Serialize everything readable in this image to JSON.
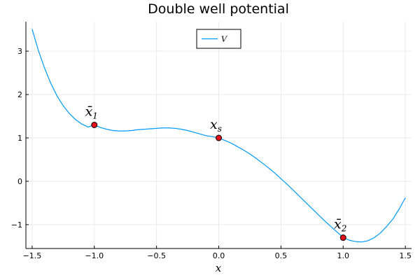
{
  "chart_data": {
    "type": "line",
    "title": "Double well potential",
    "xlabel": "x",
    "ylabel": "",
    "xlim": [
      -1.55,
      1.55
    ],
    "ylim": [
      -1.55,
      3.68
    ],
    "grid": true,
    "legend_position": "top-center",
    "x_ticks": [
      -1.5,
      -1.0,
      -0.5,
      0.0,
      0.5,
      1.0,
      1.5
    ],
    "x_tick_labels": [
      "−1.5",
      "−1.0",
      "−0.5",
      "0.0",
      "0.5",
      "1.0",
      "1.5"
    ],
    "y_ticks": [
      -1,
      0,
      1,
      2,
      3
    ],
    "y_tick_labels": [
      "−1",
      "0",
      "1",
      "2",
      "3"
    ],
    "colors": {
      "series": "#009AFA",
      "points": "#E3111B"
    },
    "series": [
      {
        "name": "V",
        "x": [
          -1.5,
          -1.45,
          -1.4,
          -1.35,
          -1.3,
          -1.25,
          -1.2,
          -1.15,
          -1.1,
          -1.05,
          -1.0,
          -0.95,
          -0.9,
          -0.85,
          -0.8,
          -0.75,
          -0.7,
          -0.65,
          -0.6,
          -0.55,
          -0.5,
          -0.45,
          -0.4,
          -0.35,
          -0.3,
          -0.25,
          -0.2,
          -0.15,
          -0.1,
          -0.05,
          0.0,
          0.05,
          0.1,
          0.15,
          0.2,
          0.25,
          0.3,
          0.35,
          0.4,
          0.45,
          0.5,
          0.55,
          0.6,
          0.65,
          0.7,
          0.75,
          0.8,
          0.85,
          0.9,
          0.95,
          1.0,
          1.05,
          1.1,
          1.15,
          1.2,
          1.25,
          1.3,
          1.35,
          1.4,
          1.45,
          1.5
        ],
        "y": [
          3.51,
          3.02,
          2.61,
          2.26,
          1.97,
          1.74,
          1.56,
          1.42,
          1.32,
          1.25,
          1.3,
          1.24,
          1.2,
          1.17,
          1.16,
          1.16,
          1.17,
          1.19,
          1.2,
          1.21,
          1.22,
          1.23,
          1.23,
          1.22,
          1.2,
          1.17,
          1.13,
          1.09,
          1.05,
          1.03,
          1.0,
          0.94,
          0.88,
          0.8,
          0.72,
          0.63,
          0.53,
          0.42,
          0.31,
          0.19,
          0.06,
          -0.07,
          -0.21,
          -0.35,
          -0.49,
          -0.63,
          -0.77,
          -0.91,
          -1.04,
          -1.17,
          -1.29,
          -1.36,
          -1.39,
          -1.4,
          -1.37,
          -1.3,
          -1.19,
          -1.04,
          -0.87,
          -0.64,
          -0.38
        ]
      }
    ],
    "points": [
      {
        "x": -1.0,
        "y": 1.3,
        "label_main": "x̄",
        "label_sub": "1"
      },
      {
        "x": 0.0,
        "y": 1.0,
        "label_main": "x",
        "label_sub": "s"
      },
      {
        "x": 1.0,
        "y": -1.3,
        "label_main": "x̄",
        "label_sub": "2"
      }
    ]
  }
}
